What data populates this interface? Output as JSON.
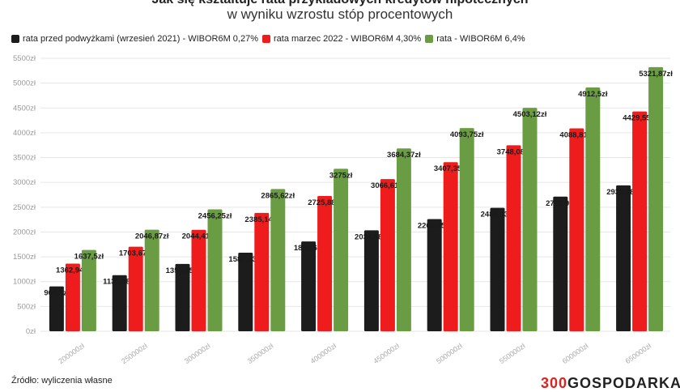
{
  "header": {
    "title": "Jak się kształtuje rata przykładowych kredytów hipotecznych",
    "subtitle": "w wyniku wzrostu stóp procentowych"
  },
  "footer": {
    "source": "Źródło: wyliczenia własne",
    "logo_part1": "300",
    "logo_part2": "GOSPODARKA"
  },
  "chart_data": {
    "type": "bar",
    "title": "Jak się kształtuje rata przykładowych kredytów hipotecznych",
    "subtitle": "w wyniku wzrostu stóp procentowych",
    "categories": [
      "200000zł",
      "250000zł",
      "300000zł",
      "350000zł",
      "400000zł",
      "450000zł",
      "500000zł",
      "550000zł",
      "600000zł",
      "650000zł"
    ],
    "series": [
      {
        "name": "rata przed podwyżkami (wrzesień 2021) - WIBOR6M 0,27%",
        "color": "#1c1c1c",
        "values": [
          904.3,
          1130.38,
          1356.45,
          1582.53,
          1808.6,
          2034.68,
          2260.75,
          2486.83,
          2712.9,
          2938.98
        ],
        "labels": [
          "904,3zł",
          "1130,38zł",
          "1356,45zł",
          "1582,53zł",
          "1808,6zł",
          "2034,68zł",
          "2260,75zł",
          "2486,83zł",
          "2712,9zł",
          "2938,98zł"
        ]
      },
      {
        "name": "rata marzec 2022 - WIBOR6M 4,30%",
        "color": "#ee1c1c",
        "values": [
          1362.94,
          1703.67,
          2044.41,
          2385.14,
          2725.88,
          3066.61,
          3407.35,
          3748.08,
          4088.81,
          4429.55
        ],
        "labels": [
          "1362,94zł",
          "1703,67zł",
          "2044,41zł",
          "2385,14zł",
          "2725,88zł",
          "3066,61zł",
          "3407,35zł",
          "3748,08zł",
          "4088,81zł",
          "4429,55zł"
        ]
      },
      {
        "name": "rata - WIBOR6M 6,4%",
        "color": "#6a9d43",
        "values": [
          1637.5,
          2046.87,
          2456.25,
          2865.62,
          3275,
          3684.37,
          4093.75,
          4503.12,
          4912.5,
          5321.87
        ],
        "labels": [
          "1637,5zł",
          "2046,87zł",
          "2456,25zł",
          "2865,62zł",
          "3275zł",
          "3684,37zł",
          "4093,75zł",
          "4503,12zł",
          "4912,5zł",
          "5321,87zł"
        ]
      }
    ],
    "yticks": [
      "0zł",
      "500zł",
      "1000zł",
      "1500zł",
      "2000zł",
      "2500zł",
      "3000zł",
      "3500zł",
      "4000zł",
      "4500zł",
      "5000zł",
      "5500zł"
    ],
    "ylim": [
      0,
      5500
    ],
    "grid": true,
    "legend": "top-left"
  }
}
